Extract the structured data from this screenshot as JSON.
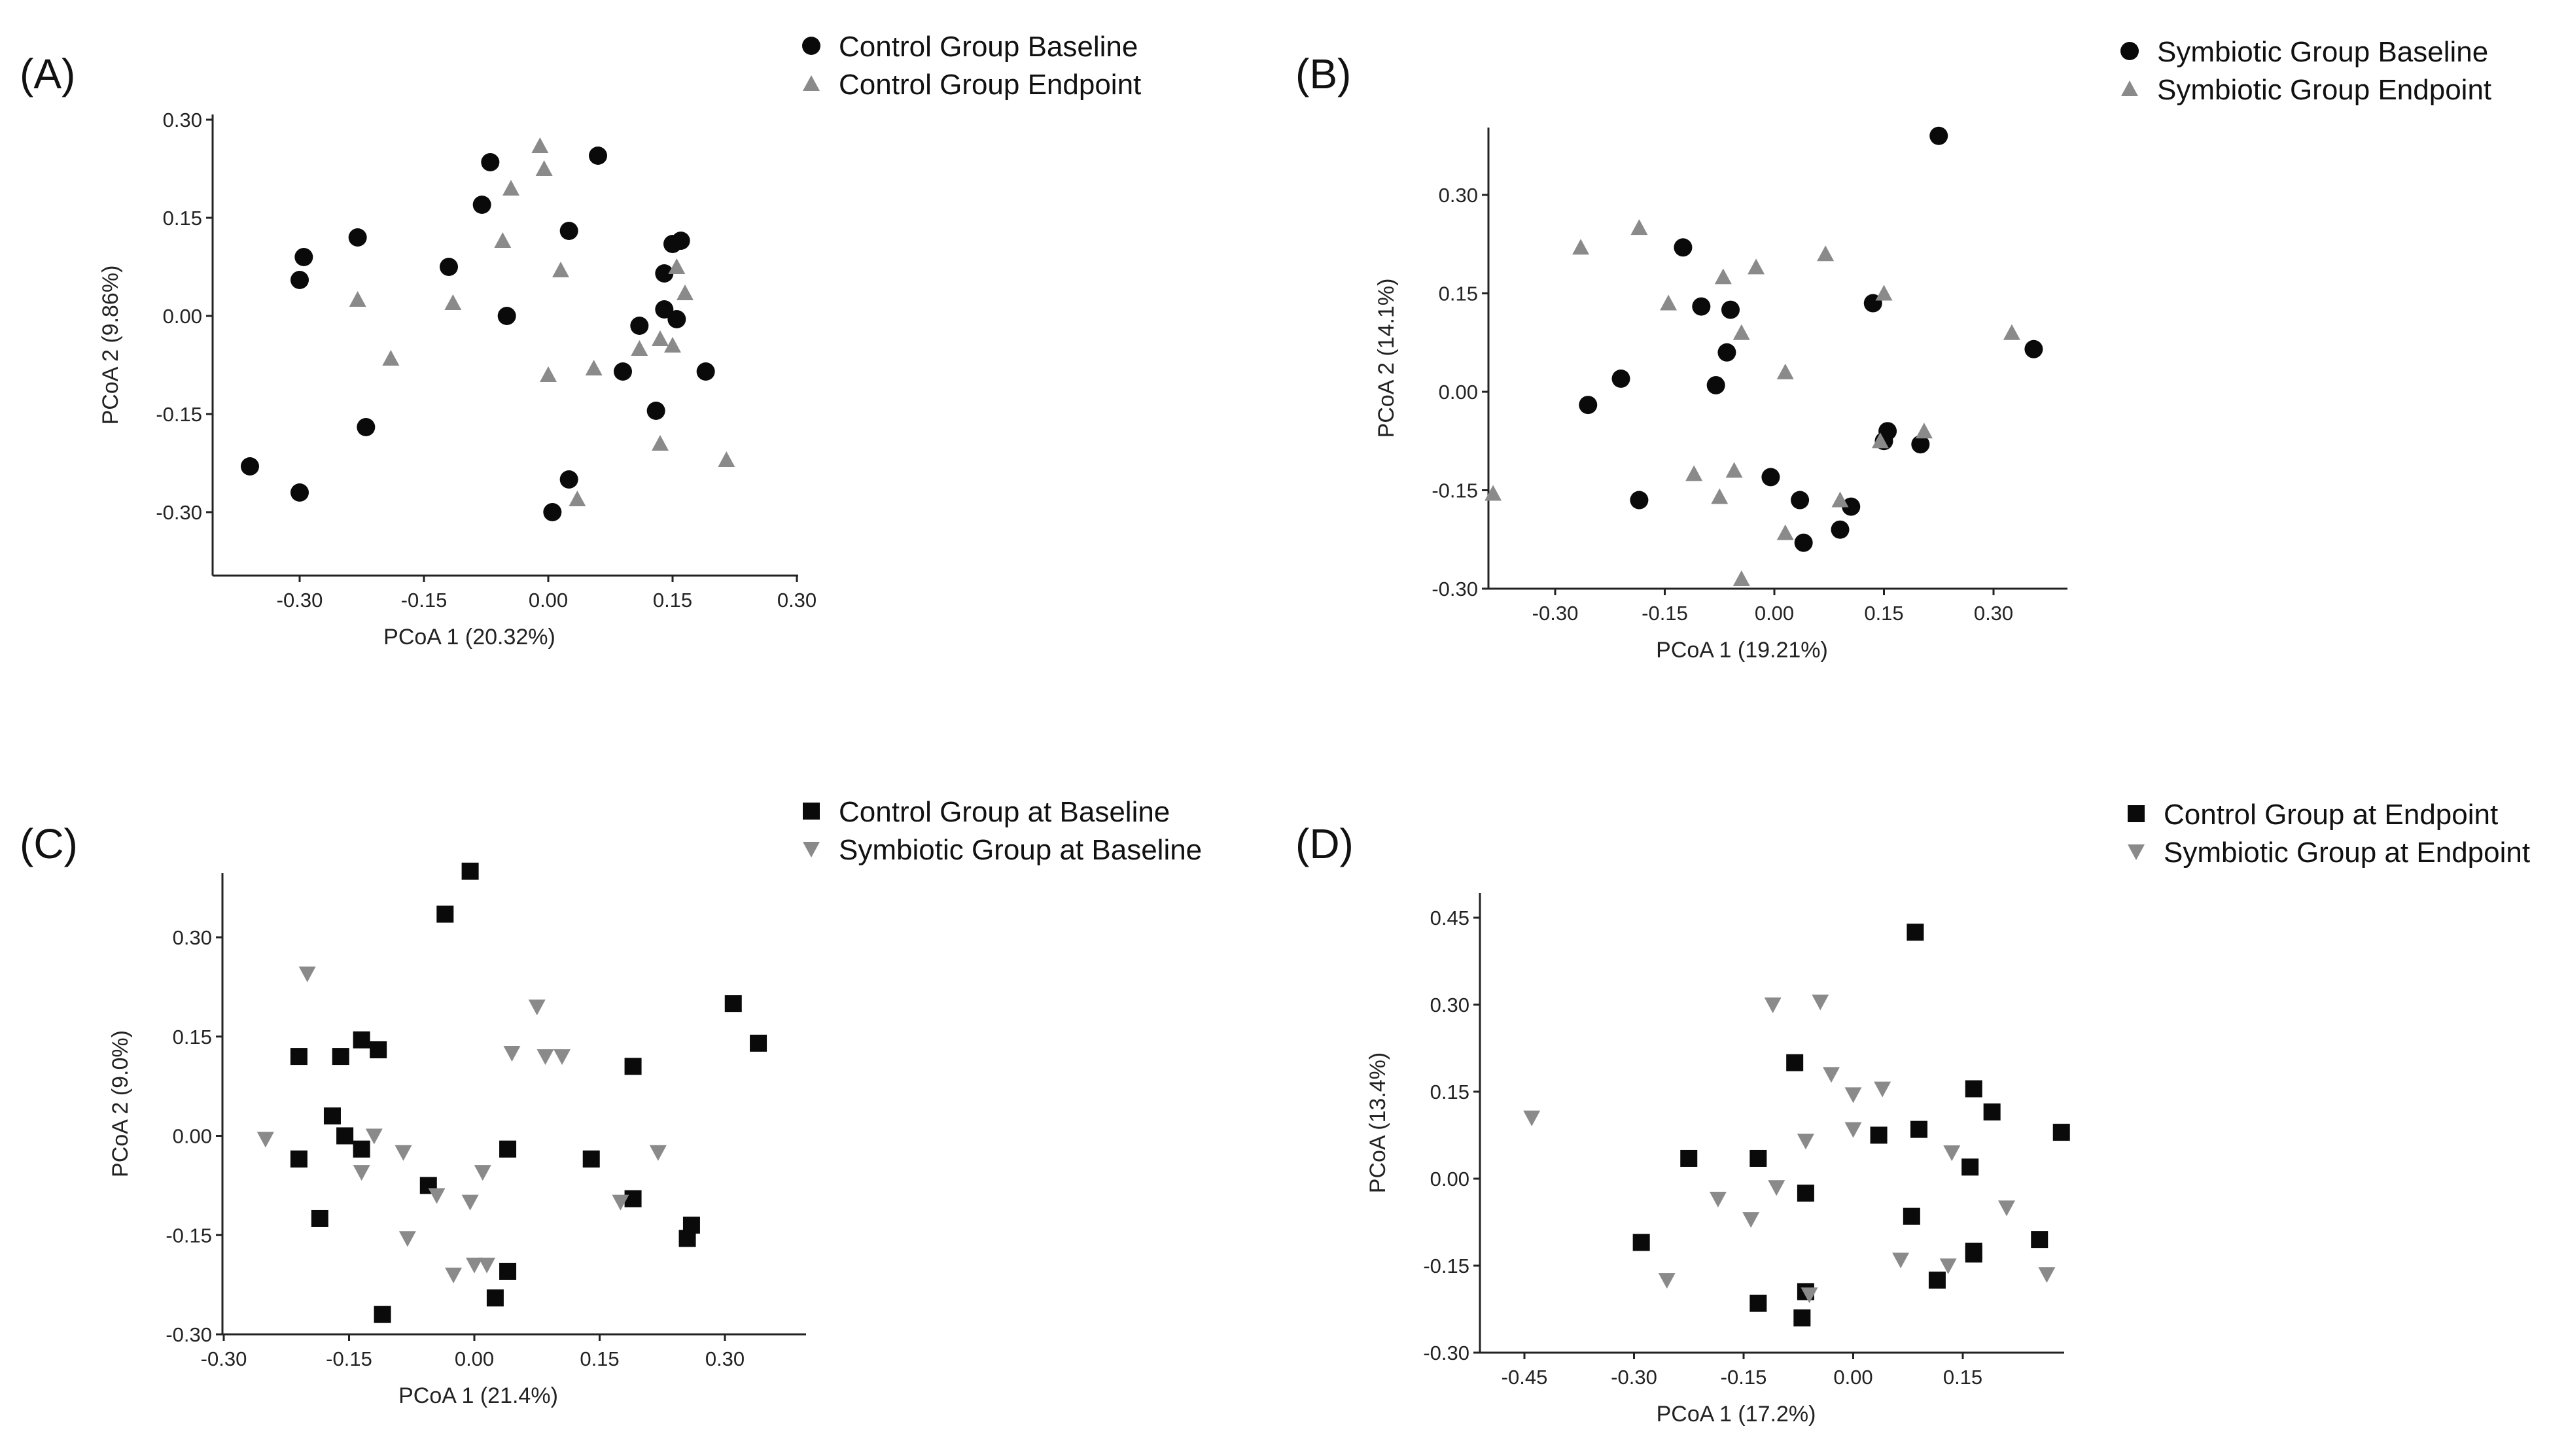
{
  "colors": {
    "black": "#0a0a0a",
    "gray": "#8a8a8a",
    "axis": "#222222"
  },
  "chart_data": [
    {
      "panel": "(A)",
      "type": "scatter",
      "xlabel": "PCoA 1 (20.32%)",
      "ylabel": "PCoA 2 (9.86%)",
      "xticks": [
        "-0.30",
        "-0.15",
        "0.00",
        "0.15",
        "0.30"
      ],
      "yticks": [
        "-0.30",
        "-0.15",
        "0.00",
        "0.15",
        "0.30"
      ],
      "series": [
        {
          "name": "Control Group Baseline",
          "marker": "circle",
          "color": "#0a0a0a",
          "points": [
            [
              -0.36,
              -0.23
            ],
            [
              -0.3,
              -0.27
            ],
            [
              -0.295,
              0.09
            ],
            [
              -0.3,
              0.055
            ],
            [
              -0.23,
              0.12
            ],
            [
              -0.22,
              -0.17
            ],
            [
              -0.12,
              0.075
            ],
            [
              -0.07,
              0.235
            ],
            [
              -0.08,
              0.17
            ],
            [
              -0.05,
              0.0
            ],
            [
              0.025,
              0.13
            ],
            [
              0.06,
              0.245
            ],
            [
              0.025,
              -0.25
            ],
            [
              0.005,
              -0.3
            ],
            [
              0.09,
              -0.085
            ],
            [
              0.11,
              -0.015
            ],
            [
              0.14,
              0.065
            ],
            [
              0.14,
              0.01
            ],
            [
              0.15,
              0.11
            ],
            [
              0.16,
              0.115
            ],
            [
              0.155,
              -0.005
            ],
            [
              0.13,
              -0.145
            ],
            [
              0.19,
              -0.085
            ]
          ]
        },
        {
          "name": "Control Group Endpoint",
          "marker": "triangle-up",
          "color": "#8a8a8a",
          "points": [
            [
              -0.01,
              0.26
            ],
            [
              -0.005,
              0.225
            ],
            [
              -0.045,
              0.195
            ],
            [
              -0.055,
              0.115
            ],
            [
              0.015,
              0.07
            ],
            [
              -0.23,
              0.025
            ],
            [
              -0.115,
              0.02
            ],
            [
              -0.19,
              -0.065
            ],
            [
              0.0,
              -0.09
            ],
            [
              0.055,
              -0.08
            ],
            [
              0.035,
              -0.28
            ],
            [
              0.11,
              -0.05
            ],
            [
              0.135,
              -0.035
            ],
            [
              0.15,
              -0.045
            ],
            [
              0.165,
              0.035
            ],
            [
              0.155,
              0.075
            ],
            [
              0.135,
              -0.195
            ],
            [
              0.215,
              -0.22
            ]
          ]
        }
      ]
    },
    {
      "panel": "(B)",
      "type": "scatter",
      "xlabel": "PCoA 1 (19.21%)",
      "ylabel": "PCoA 2 (14.1%)",
      "xticks": [
        "-0.30",
        "-0.15",
        "0.00",
        "0.15",
        "0.30"
      ],
      "yticks": [
        "-0.30",
        "-0.15",
        "0.00",
        "0.15",
        "0.30"
      ],
      "series": [
        {
          "name": "Symbiotic Group Baseline",
          "marker": "circle",
          "color": "#0a0a0a",
          "points": [
            [
              0.225,
              0.39
            ],
            [
              0.355,
              0.065
            ],
            [
              -0.125,
              0.22
            ],
            [
              -0.1,
              0.13
            ],
            [
              -0.06,
              0.125
            ],
            [
              -0.065,
              0.06
            ],
            [
              -0.08,
              0.01
            ],
            [
              -0.21,
              0.02
            ],
            [
              -0.255,
              -0.02
            ],
            [
              0.135,
              0.135
            ],
            [
              0.155,
              -0.06
            ],
            [
              0.15,
              -0.075
            ],
            [
              0.2,
              -0.08
            ],
            [
              -0.185,
              -0.165
            ],
            [
              -0.005,
              -0.13
            ],
            [
              0.035,
              -0.165
            ],
            [
              0.105,
              -0.175
            ],
            [
              0.09,
              -0.21
            ],
            [
              0.04,
              -0.23
            ]
          ]
        },
        {
          "name": "Symbiotic Group Endpoint",
          "marker": "triangle-up",
          "color": "#8a8a8a",
          "points": [
            [
              -0.185,
              0.25
            ],
            [
              -0.265,
              0.22
            ],
            [
              0.07,
              0.21
            ],
            [
              -0.025,
              0.19
            ],
            [
              -0.07,
              0.175
            ],
            [
              0.15,
              0.15
            ],
            [
              -0.145,
              0.135
            ],
            [
              -0.045,
              0.09
            ],
            [
              0.015,
              0.03
            ],
            [
              0.325,
              0.09
            ],
            [
              0.205,
              -0.06
            ],
            [
              0.145,
              -0.075
            ],
            [
              -0.385,
              -0.155
            ],
            [
              -0.11,
              -0.125
            ],
            [
              -0.055,
              -0.12
            ],
            [
              -0.075,
              -0.16
            ],
            [
              0.09,
              -0.165
            ],
            [
              0.015,
              -0.215
            ],
            [
              -0.045,
              -0.285
            ]
          ]
        }
      ]
    },
    {
      "panel": "(C)",
      "type": "scatter",
      "xlabel": "PCoA 1 (21.4%)",
      "ylabel": "PCoA 2 (9.0%)",
      "xticks": [
        "-0.30",
        "-0.15",
        "0.00",
        "0.15",
        "0.30"
      ],
      "yticks": [
        "-0.30",
        "-0.15",
        "0.00",
        "0.15",
        "0.30"
      ],
      "series": [
        {
          "name": "Control  Group at Baseline",
          "marker": "square",
          "color": "#0a0a0a",
          "points": [
            [
              -0.005,
              0.4
            ],
            [
              -0.035,
              0.335
            ],
            [
              0.31,
              0.2
            ],
            [
              0.34,
              0.14
            ],
            [
              -0.21,
              0.12
            ],
            [
              -0.16,
              0.12
            ],
            [
              -0.135,
              0.145
            ],
            [
              -0.115,
              0.13
            ],
            [
              -0.17,
              0.03
            ],
            [
              -0.155,
              0.0
            ],
            [
              -0.135,
              -0.02
            ],
            [
              -0.21,
              -0.035
            ],
            [
              -0.055,
              -0.075
            ],
            [
              0.04,
              -0.02
            ],
            [
              0.19,
              0.105
            ],
            [
              0.14,
              -0.035
            ],
            [
              0.19,
              -0.095
            ],
            [
              -0.185,
              -0.125
            ],
            [
              0.26,
              -0.135
            ],
            [
              0.255,
              -0.155
            ],
            [
              0.04,
              -0.205
            ],
            [
              0.025,
              -0.245
            ],
            [
              -0.11,
              -0.27
            ]
          ]
        },
        {
          "name": "Symbiotic Group at Baseline",
          "marker": "triangle-down",
          "color": "#8a8a8a",
          "points": [
            [
              -0.2,
              0.245
            ],
            [
              0.075,
              0.195
            ],
            [
              0.045,
              0.125
            ],
            [
              0.085,
              0.12
            ],
            [
              0.105,
              0.12
            ],
            [
              -0.12,
              0.0
            ],
            [
              -0.25,
              -0.005
            ],
            [
              -0.085,
              -0.025
            ],
            [
              -0.135,
              -0.055
            ],
            [
              0.01,
              -0.055
            ],
            [
              -0.045,
              -0.09
            ],
            [
              -0.005,
              -0.1
            ],
            [
              0.175,
              -0.1
            ],
            [
              -0.08,
              -0.155
            ],
            [
              0.22,
              -0.025
            ],
            [
              0.0,
              -0.195
            ],
            [
              0.015,
              -0.195
            ],
            [
              -0.025,
              -0.21
            ]
          ]
        }
      ]
    },
    {
      "panel": "(D)",
      "type": "scatter",
      "xlabel": "PCoA 1 (17.2%)",
      "ylabel": "PCoA (13.4%)",
      "xticks": [
        "-0.45",
        "-0.30",
        "-0.15",
        "0.00",
        "0.15"
      ],
      "yticks": [
        "-0.30",
        "-0.15",
        "0.00",
        "0.15",
        "0.30",
        "0.45"
      ],
      "series": [
        {
          "name": "Control  Group at Endpoint",
          "marker": "square",
          "color": "#0a0a0a",
          "points": [
            [
              0.085,
              0.425
            ],
            [
              -0.08,
              0.2
            ],
            [
              0.165,
              0.155
            ],
            [
              0.19,
              0.115
            ],
            [
              0.09,
              0.085
            ],
            [
              0.035,
              0.075
            ],
            [
              0.285,
              0.08
            ],
            [
              -0.225,
              0.035
            ],
            [
              -0.13,
              0.035
            ],
            [
              0.16,
              0.02
            ],
            [
              -0.065,
              -0.025
            ],
            [
              0.08,
              -0.065
            ],
            [
              -0.29,
              -0.11
            ],
            [
              0.255,
              -0.105
            ],
            [
              0.165,
              -0.125
            ],
            [
              0.165,
              -0.13
            ],
            [
              0.115,
              -0.175
            ],
            [
              -0.13,
              -0.215
            ],
            [
              -0.065,
              -0.195
            ],
            [
              -0.07,
              -0.24
            ]
          ]
        },
        {
          "name": "Symbiotic Group at Endpoint",
          "marker": "triangle-down",
          "color": "#8a8a8a",
          "points": [
            [
              -0.11,
              0.3
            ],
            [
              -0.045,
              0.305
            ],
            [
              -0.03,
              0.18
            ],
            [
              0.0,
              0.145
            ],
            [
              0.04,
              0.155
            ],
            [
              -0.44,
              0.105
            ],
            [
              -0.065,
              0.065
            ],
            [
              0.0,
              0.085
            ],
            [
              0.135,
              0.045
            ],
            [
              -0.105,
              -0.015
            ],
            [
              -0.185,
              -0.035
            ],
            [
              0.21,
              -0.05
            ],
            [
              -0.14,
              -0.07
            ],
            [
              0.065,
              -0.14
            ],
            [
              0.13,
              -0.15
            ],
            [
              -0.255,
              -0.175
            ],
            [
              -0.06,
              -0.2
            ],
            [
              0.265,
              -0.165
            ]
          ]
        }
      ]
    }
  ]
}
